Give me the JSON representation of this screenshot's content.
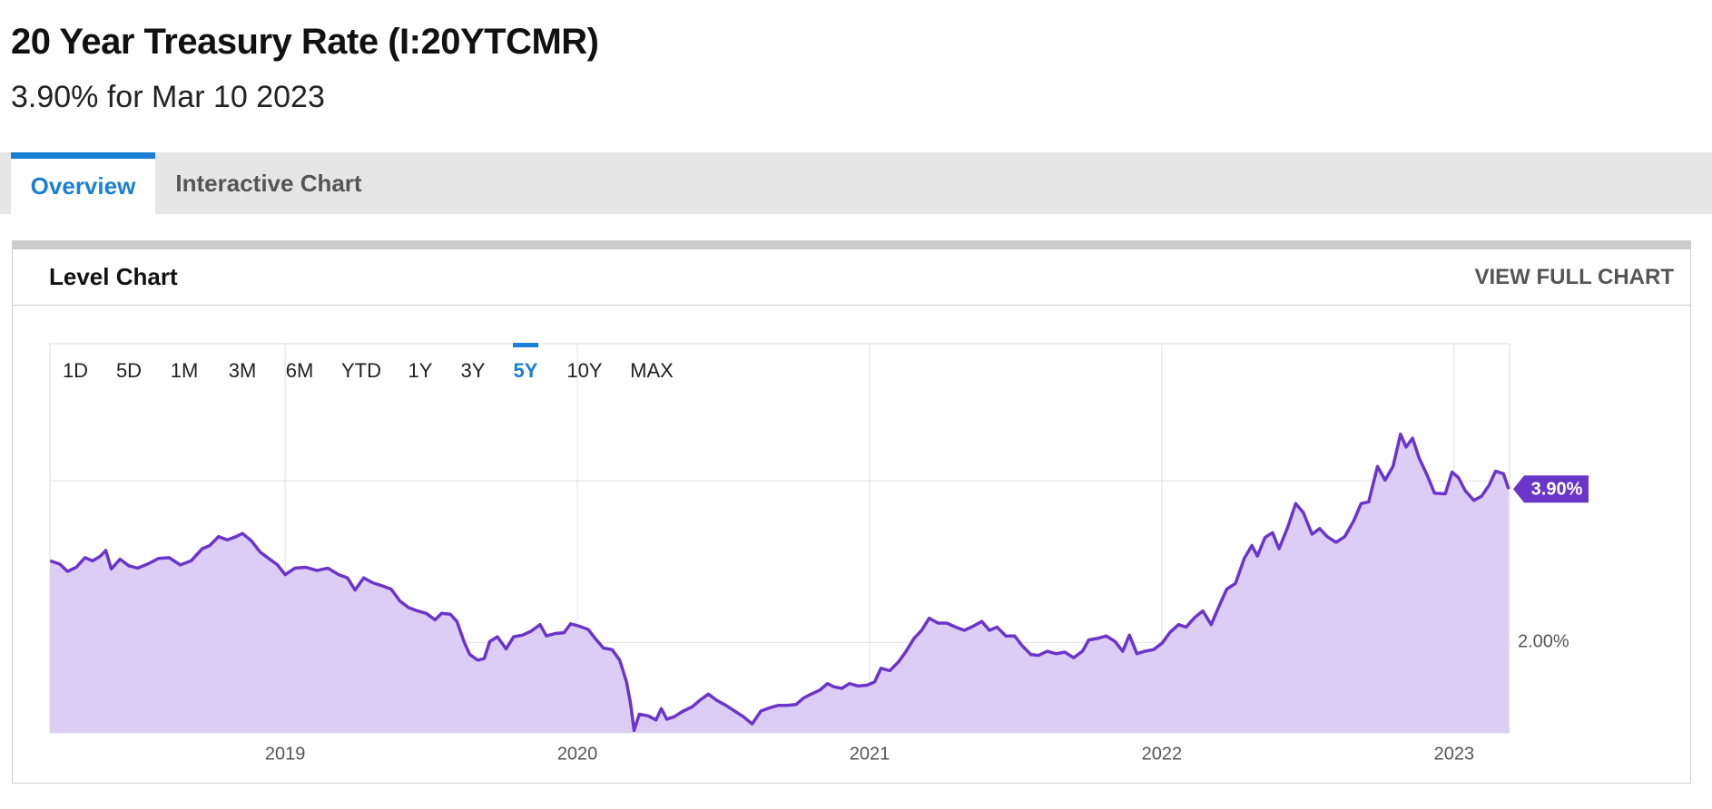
{
  "header": {
    "title": "20 Year Treasury Rate (I:20YTCMR)",
    "subtitle": "3.90% for Mar 10 2023"
  },
  "tabs": [
    {
      "label": "Overview",
      "active": true
    },
    {
      "label": "Interactive Chart",
      "active": false
    }
  ],
  "card": {
    "title": "Level Chart",
    "link": "VIEW FULL CHART"
  },
  "ranges": [
    "1D",
    "5D",
    "1M",
    "3M",
    "6M",
    "YTD",
    "1Y",
    "3Y",
    "5Y",
    "10Y",
    "MAX"
  ],
  "active_range_index": 8,
  "chart_data": {
    "type": "area",
    "color": "#6a35c9",
    "fill": "#dccdf4",
    "grid": true,
    "end_label": "3.90%",
    "xlim": [
      2018.195,
      2023.19
    ],
    "xticks": [
      2019,
      2020,
      2021,
      2022,
      2023
    ],
    "ylim": [
      0.88,
      5.7
    ],
    "yticks": [
      {
        "value": 2,
        "label": "2.00%"
      },
      {
        "value": 4,
        "label": null
      }
    ],
    "x": [
      2018.196,
      2018.229,
      2018.255,
      2018.285,
      2018.315,
      2018.341,
      2018.368,
      2018.386,
      2018.405,
      2018.435,
      2018.465,
      2018.495,
      2018.529,
      2018.566,
      2018.603,
      2018.641,
      2018.678,
      2018.716,
      2018.742,
      2018.772,
      2018.802,
      2018.832,
      2018.854,
      2018.884,
      2018.914,
      2018.944,
      2018.974,
      2019.0,
      2019.034,
      2019.071,
      2019.109,
      2019.146,
      2019.183,
      2019.213,
      2019.239,
      2019.269,
      2019.299,
      2019.333,
      2019.363,
      2019.393,
      2019.423,
      2019.453,
      2019.483,
      2019.513,
      2019.535,
      2019.565,
      2019.588,
      2019.614,
      2019.632,
      2019.659,
      2019.681,
      2019.7,
      2019.726,
      2019.756,
      2019.782,
      2019.812,
      2019.842,
      2019.872,
      2019.894,
      2019.924,
      2019.954,
      2019.977,
      2020.007,
      2020.037,
      2020.063,
      2020.089,
      2020.119,
      2020.145,
      2020.168,
      2020.182,
      2020.194,
      2020.212,
      2020.242,
      2020.269,
      2020.287,
      2020.306,
      2020.332,
      2020.362,
      2020.392,
      2020.418,
      2020.448,
      2020.478,
      2020.508,
      2020.538,
      2020.568,
      2020.598,
      2020.628,
      2020.658,
      2020.688,
      2020.718,
      2020.748,
      2020.774,
      2020.8,
      2020.83,
      2020.856,
      2020.878,
      2020.905,
      2020.931,
      2020.961,
      2020.991,
      2021.017,
      2021.039,
      2021.069,
      2021.099,
      2021.125,
      2021.152,
      2021.178,
      2021.204,
      2021.234,
      2021.264,
      2021.294,
      2021.324,
      2021.354,
      2021.384,
      2021.41,
      2021.436,
      2021.466,
      2021.496,
      2021.522,
      2021.552,
      2021.578,
      2021.608,
      2021.638,
      2021.668,
      2021.698,
      2021.728,
      2021.75,
      2021.78,
      2021.81,
      2021.84,
      2021.866,
      2021.889,
      2021.915,
      2021.941,
      2021.971,
      2022.001,
      2022.027,
      2022.057,
      2022.083,
      2022.113,
      2022.14,
      2022.169,
      2022.196,
      2022.222,
      2022.252,
      2022.282,
      2022.308,
      2022.327,
      2022.353,
      2022.379,
      2022.401,
      2022.431,
      2022.458,
      2022.484,
      2022.514,
      2022.54,
      2022.566,
      2022.596,
      2022.626,
      2022.656,
      2022.682,
      2022.708,
      2022.738,
      2022.764,
      2022.791,
      2022.817,
      2022.836,
      2022.858,
      2022.881,
      2022.907,
      2022.933,
      2022.97,
      2022.993,
      2023.015,
      2023.038,
      2023.068,
      2023.094,
      2023.12,
      2023.142,
      2023.169,
      2023.187
    ],
    "values": [
      3.01,
      2.97,
      2.88,
      2.93,
      3.05,
      3.01,
      3.07,
      3.14,
      2.91,
      3.03,
      2.95,
      2.92,
      2.97,
      3.04,
      3.05,
      2.96,
      3.01,
      3.16,
      3.2,
      3.31,
      3.27,
      3.31,
      3.35,
      3.26,
      3.12,
      3.04,
      2.96,
      2.84,
      2.92,
      2.93,
      2.89,
      2.92,
      2.84,
      2.8,
      2.65,
      2.8,
      2.74,
      2.7,
      2.66,
      2.51,
      2.43,
      2.39,
      2.36,
      2.28,
      2.36,
      2.35,
      2.26,
      1.99,
      1.85,
      1.78,
      1.8,
      2.01,
      2.07,
      1.92,
      2.07,
      2.09,
      2.14,
      2.22,
      2.08,
      2.11,
      2.12,
      2.23,
      2.2,
      2.16,
      2.04,
      1.93,
      1.91,
      1.78,
      1.51,
      1.24,
      0.91,
      1.11,
      1.09,
      1.04,
      1.18,
      1.05,
      1.08,
      1.15,
      1.2,
      1.28,
      1.36,
      1.28,
      1.22,
      1.15,
      1.08,
      0.99,
      1.15,
      1.19,
      1.22,
      1.22,
      1.23,
      1.31,
      1.36,
      1.41,
      1.49,
      1.45,
      1.43,
      1.49,
      1.46,
      1.47,
      1.51,
      1.68,
      1.65,
      1.76,
      1.89,
      2.05,
      2.15,
      2.3,
      2.24,
      2.24,
      2.19,
      2.15,
      2.2,
      2.26,
      2.15,
      2.19,
      2.08,
      2.08,
      1.96,
      1.85,
      1.84,
      1.89,
      1.86,
      1.88,
      1.81,
      1.89,
      2.03,
      2.05,
      2.08,
      2.01,
      1.89,
      2.09,
      1.86,
      1.89,
      1.91,
      1.99,
      2.12,
      2.22,
      2.19,
      2.31,
      2.39,
      2.22,
      2.45,
      2.66,
      2.73,
      3.04,
      3.2,
      3.07,
      3.3,
      3.36,
      3.16,
      3.43,
      3.72,
      3.61,
      3.34,
      3.41,
      3.31,
      3.24,
      3.31,
      3.5,
      3.72,
      3.74,
      4.18,
      4.01,
      4.18,
      4.58,
      4.42,
      4.53,
      4.28,
      4.08,
      3.85,
      3.84,
      4.11,
      4.04,
      3.88,
      3.76,
      3.81,
      3.95,
      4.12,
      4.09,
      3.9
    ]
  }
}
